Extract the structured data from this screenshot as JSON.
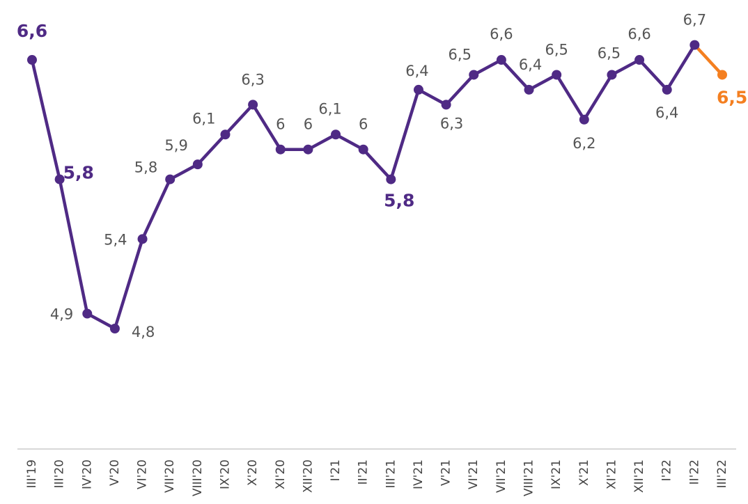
{
  "chart_data": {
    "type": "line",
    "categories": [
      "III'19",
      "III'20",
      "IV'20",
      "V'20",
      "VI'20",
      "VII'20",
      "VIII'20",
      "IX'20",
      "X'20",
      "XI'20",
      "XII'20",
      "I'21",
      "II'21",
      "III'21",
      "IV'21",
      "V'21",
      "VI'21",
      "VII'21",
      "VIII'21",
      "IX'21",
      "X'21",
      "XI'21",
      "XII'21",
      "I'22",
      "II'22",
      "III'22"
    ],
    "series": [
      {
        "color": "#4f2a85",
        "last_color": "#f47f20",
        "values": [
          6.6,
          5.8,
          4.9,
          4.8,
          5.4,
          5.8,
          5.9,
          6.1,
          6.3,
          6,
          6,
          6.1,
          6,
          5.8,
          6.4,
          6.3,
          6.5,
          6.6,
          6.4,
          6.5,
          6.2,
          6.5,
          6.6,
          6.4,
          6.7,
          6.5
        ],
        "value_labels": [
          "6,6",
          "5,8",
          "4,9",
          "4,8",
          "5,4",
          "5,8",
          "5,9",
          "6,1",
          "6,3",
          "6",
          "6",
          "6,1",
          "6",
          "5,8",
          "6,4",
          "6,3",
          "6,5",
          "6,6",
          "6,4",
          "6,5",
          "6,2",
          "6,5",
          "6,6",
          "6,4",
          "6,7",
          "6,5"
        ]
      }
    ]
  }
}
